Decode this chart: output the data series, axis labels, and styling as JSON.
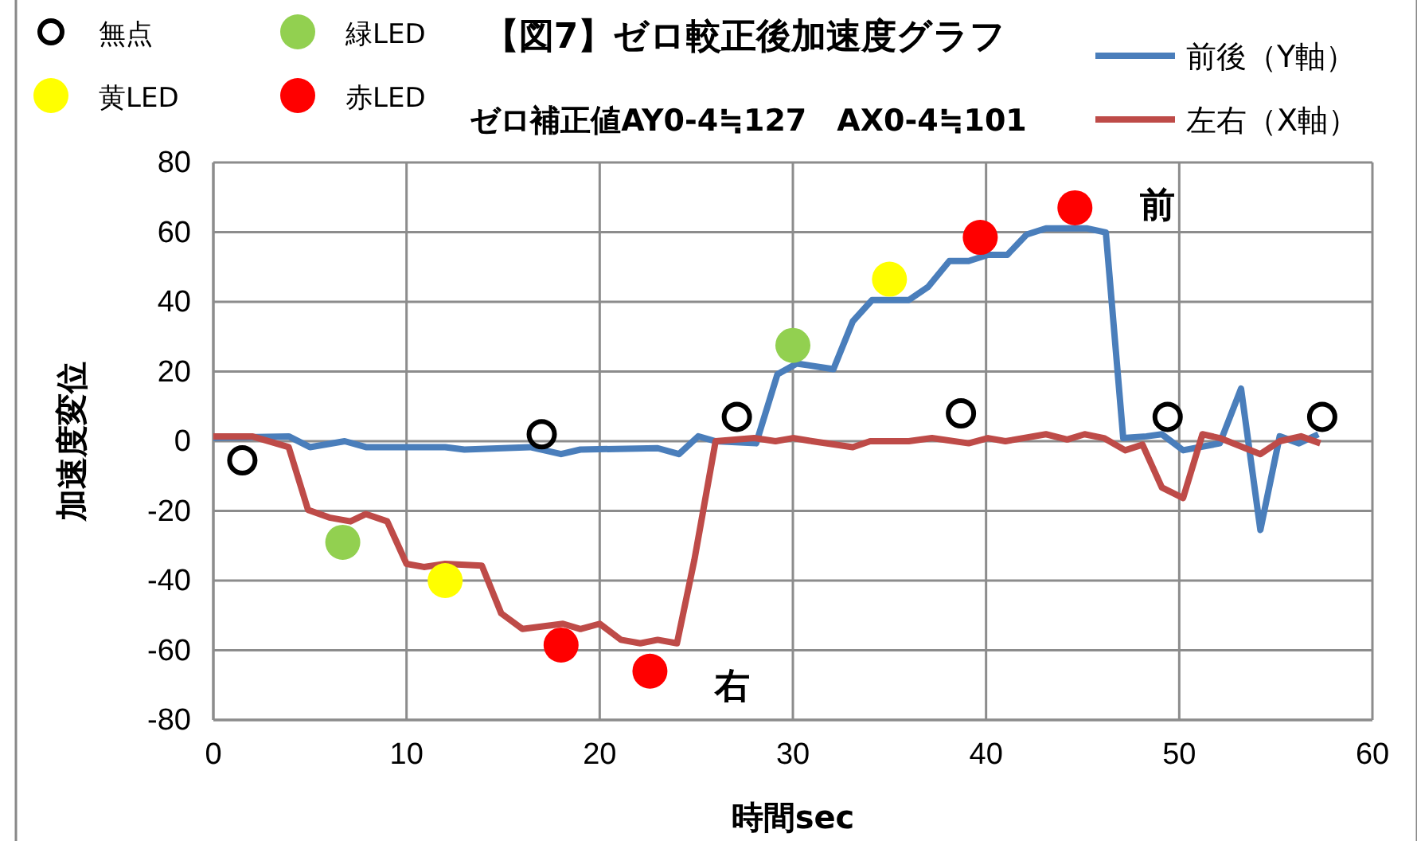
{
  "chart_data": {
    "type": "line",
    "title": "【図7】ゼロ較正後加速度グラフ",
    "subtitle": "ゼロ補正値AY0-4≒127　AX0-4≒101",
    "xlabel": "時間sec",
    "ylabel": "加速度変位",
    "xlim": [
      0,
      60
    ],
    "xticks": [
      0,
      10,
      20,
      30,
      40,
      50,
      60
    ],
    "ylim": [
      -80,
      80
    ],
    "yticks": [
      -80,
      -60,
      -40,
      -20,
      0,
      20,
      40,
      60,
      80
    ],
    "grid": true,
    "legend": "top",
    "marker": "none",
    "line_style": "solid",
    "annotations": [
      "前",
      "右"
    ],
    "series": [
      {
        "name": "前後（Y軸）",
        "color": "#4a7ebb",
        "x": [
          0,
          3.9,
          5,
          6.8,
          7.9,
          12,
          13,
          16.4,
          18,
          19,
          23,
          24.1,
          25.1,
          26,
          28.1,
          29.2,
          30.2,
          32.1,
          33.1,
          34.1,
          36,
          37,
          38.1,
          39.1,
          40.1,
          41.1,
          42.1,
          43.1,
          45.2,
          46.2,
          47.1,
          48.3,
          49.1,
          50.2,
          52.1,
          53.2,
          54.2,
          55.2,
          56.2,
          57.2
        ],
        "values": [
          1,
          1.4,
          -1.7,
          0,
          -1.7,
          -1.7,
          -2.4,
          -1.7,
          -3.7,
          -2.4,
          -2,
          -3.7,
          1.4,
          0,
          -0.6,
          19.2,
          22.3,
          20.7,
          34.4,
          40.5,
          40.5,
          44.3,
          51.7,
          51.7,
          53.5,
          53.5,
          59.3,
          61.1,
          61.1,
          59.9,
          0.9,
          1.4,
          2,
          -2.6,
          -0.6,
          15.1,
          -25.5,
          1.4,
          -0.6,
          2
        ]
      },
      {
        "name": "左右（X軸）",
        "color": "#be4b48",
        "x": [
          0,
          2,
          3.9,
          4.9,
          6,
          7.1,
          7.9,
          9,
          10,
          10.9,
          12,
          13.9,
          14.9,
          16,
          18.1,
          19,
          20,
          21.1,
          22.1,
          23,
          24,
          24.9,
          26,
          28,
          29.1,
          30,
          31,
          33.1,
          34,
          36,
          37.2,
          39.1,
          40.1,
          41,
          43.1,
          44.2,
          45.1,
          46.1,
          47.2,
          48.1,
          49.1,
          50.2,
          51.2,
          52.1,
          54.2,
          55.2,
          56.3,
          57.3
        ],
        "values": [
          1.4,
          1.4,
          -1.7,
          -19.7,
          -21.9,
          -23,
          -20.9,
          -23,
          -35.2,
          -36.1,
          -35.2,
          -35.7,
          -49.4,
          -53.9,
          -52.4,
          -53.9,
          -52.4,
          -57,
          -58,
          -57,
          -58,
          -34.1,
          0,
          0.9,
          0,
          0.9,
          0,
          -1.7,
          0,
          0,
          0.9,
          -0.6,
          0.9,
          0,
          2,
          0.5,
          2,
          0.9,
          -2.6,
          -1,
          -13.3,
          -16.3,
          2,
          0.9,
          -3.7,
          0,
          1.4,
          -0.6
        ]
      },
      {
        "name": "無点",
        "type": "scatter",
        "marker": "circle",
        "color": "#000000",
        "x": [
          1.5,
          17,
          27.1,
          38.7,
          49.4,
          57.4
        ],
        "values": [
          -5.5,
          2,
          7,
          8,
          7,
          7
        ]
      },
      {
        "name": "緑LED",
        "type": "scatter",
        "marker": "circle",
        "color": "#92d050",
        "x": [
          6.7,
          30
        ],
        "values": [
          -29,
          27.5
        ]
      },
      {
        "name": "黄LED",
        "type": "scatter",
        "marker": "circle",
        "color": "#ffff00",
        "x": [
          12,
          35
        ],
        "values": [
          -40,
          46.5
        ]
      },
      {
        "name": "赤LED",
        "type": "scatter",
        "marker": "circle",
        "color": "#ff0000",
        "x": [
          18,
          22.6,
          39.7,
          44.6
        ],
        "values": [
          -58.5,
          -66,
          58.5,
          67
        ]
      }
    ]
  }
}
